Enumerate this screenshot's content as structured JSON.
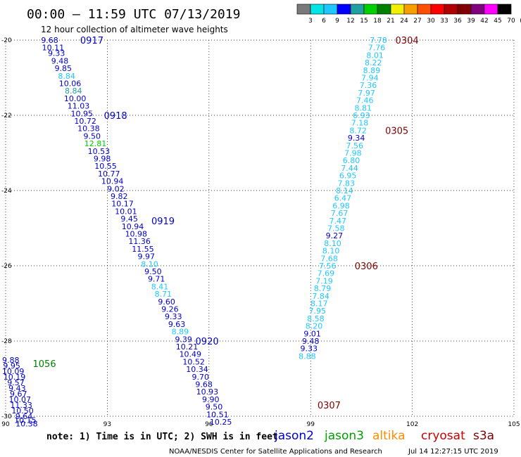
{
  "header": {
    "title": "00:00 – 11:59 UTC 07/13/2019",
    "subtitle": "12 hour collection of altimeter wave heights"
  },
  "scale": {
    "labels": [
      "3",
      "6",
      "9",
      "12",
      "15",
      "18",
      "21",
      "24",
      "27",
      "30",
      "33",
      "36",
      "39",
      "42",
      "45",
      "70",
      "(ft)"
    ],
    "colors": [
      "#7a7a7a",
      "#00e5e5",
      "#1ec8ff",
      "#0000ff",
      "#20a0a0",
      "#00d000",
      "#008000",
      "#f0f000",
      "#f5a000",
      "#ff5000",
      "#ff0000",
      "#b00000",
      "#800000",
      "#800080",
      "#ff00ff",
      "#000000"
    ]
  },
  "footer": {
    "note": "note: 1) Time is in UTC; 2) SWH is in feet",
    "credit": "NOAA/NESDIS Center for Satellite Applications and Research",
    "timestamp": "Jul 14 12:27:15 UTC 2019"
  },
  "legend": [
    {
      "name": "jason2",
      "color": "#0000cc"
    },
    {
      "name": "jason3",
      "color": "#00a000"
    },
    {
      "name": "altika",
      "color": "#ff8c00"
    },
    {
      "name": "cryosat",
      "color": "#cc0000"
    },
    {
      "name": "s3a",
      "color": "#800000"
    }
  ],
  "chart_data": {
    "type": "scatter",
    "title": "00:00 – 11:59 UTC 07/13/2019",
    "xlim": [
      90,
      105
    ],
    "ylim": [
      -30,
      -20
    ],
    "x_ticks": [
      "90",
      "93",
      "96",
      "99",
      "102",
      "105"
    ],
    "y_ticks": [
      "-20",
      "-22",
      "-24",
      "-26",
      "-28",
      "-30"
    ],
    "grid": "dotted",
    "time_labels": [
      {
        "text": "0917",
        "x": 92.2,
        "y": -20.0,
        "color": "#0000cc"
      },
      {
        "text": "0918",
        "x": 92.9,
        "y": -22.0,
        "color": "#0000cc"
      },
      {
        "text": "0919",
        "x": 94.3,
        "y": -24.8,
        "color": "#0000cc"
      },
      {
        "text": "0920",
        "x": 95.6,
        "y": -28.0,
        "color": "#0000cc"
      },
      {
        "text": "1056",
        "x": 90.8,
        "y": -28.6,
        "color": "#008000"
      },
      {
        "text": "0304",
        "x": 101.5,
        "y": -20.0,
        "color": "#800000"
      },
      {
        "text": "0305",
        "x": 101.2,
        "y": -22.4,
        "color": "#800000"
      },
      {
        "text": "0306",
        "x": 100.3,
        "y": -26.0,
        "color": "#800000"
      },
      {
        "text": "0307",
        "x": 99.2,
        "y": -29.7,
        "color": "#800000"
      }
    ],
    "series": [
      {
        "name": "jason2",
        "points": [
          {
            "x": 91.3,
            "y": -20.0,
            "v": "9.68",
            "c": "#0000cc"
          },
          {
            "x": 91.4,
            "y": -20.2,
            "v": "10.11",
            "c": "#0000cc"
          },
          {
            "x": 91.5,
            "y": -20.35,
            "v": "9.33",
            "c": "#0000cc"
          },
          {
            "x": 91.6,
            "y": -20.55,
            "v": "9.48",
            "c": "#0000cc"
          },
          {
            "x": 91.7,
            "y": -20.75,
            "v": "9.85",
            "c": "#0000cc"
          },
          {
            "x": 91.8,
            "y": -20.95,
            "v": "8.84",
            "c": "#1ec8ff"
          },
          {
            "x": 91.9,
            "y": -21.15,
            "v": "10.06",
            "c": "#0000cc"
          },
          {
            "x": 92.0,
            "y": -21.35,
            "v": "8.84",
            "c": "#20a0a0"
          },
          {
            "x": 92.05,
            "y": -21.55,
            "v": "10.00",
            "c": "#0000cc"
          },
          {
            "x": 92.15,
            "y": -21.75,
            "v": "11.03",
            "c": "#0000cc"
          },
          {
            "x": 92.25,
            "y": -21.95,
            "v": "10.95",
            "c": "#0000cc"
          },
          {
            "x": 92.35,
            "y": -22.15,
            "v": "10.72",
            "c": "#0000cc"
          },
          {
            "x": 92.45,
            "y": -22.35,
            "v": "10.38",
            "c": "#0000cc"
          },
          {
            "x": 92.55,
            "y": -22.55,
            "v": "9.50",
            "c": "#0000cc"
          },
          {
            "x": 92.65,
            "y": -22.75,
            "v": "12.81",
            "c": "#00d000"
          },
          {
            "x": 92.75,
            "y": -22.95,
            "v": "10.53",
            "c": "#0000cc"
          },
          {
            "x": 92.85,
            "y": -23.15,
            "v": "9.98",
            "c": "#0000cc"
          },
          {
            "x": 92.95,
            "y": -23.35,
            "v": "10.55",
            "c": "#0000cc"
          },
          {
            "x": 93.05,
            "y": -23.55,
            "v": "10.77",
            "c": "#0000cc"
          },
          {
            "x": 93.15,
            "y": -23.75,
            "v": "10.94",
            "c": "#0000cc"
          },
          {
            "x": 93.25,
            "y": -23.95,
            "v": "9.02",
            "c": "#0000cc"
          },
          {
            "x": 93.35,
            "y": -24.15,
            "v": "9.82",
            "c": "#0000cc"
          },
          {
            "x": 93.45,
            "y": -24.35,
            "v": "10.17",
            "c": "#0000cc"
          },
          {
            "x": 93.55,
            "y": -24.55,
            "v": "10.01",
            "c": "#0000cc"
          },
          {
            "x": 93.65,
            "y": -24.75,
            "v": "9.45",
            "c": "#0000cc"
          },
          {
            "x": 93.75,
            "y": -24.95,
            "v": "10.94",
            "c": "#0000cc"
          },
          {
            "x": 93.85,
            "y": -25.15,
            "v": "10.98",
            "c": "#0000cc"
          },
          {
            "x": 93.95,
            "y": -25.35,
            "v": "11.36",
            "c": "#0000cc"
          },
          {
            "x": 94.05,
            "y": -25.55,
            "v": "11.55",
            "c": "#0000cc"
          },
          {
            "x": 94.15,
            "y": -25.75,
            "v": "9.97",
            "c": "#0000cc"
          },
          {
            "x": 94.25,
            "y": -25.95,
            "v": "8.10",
            "c": "#1ec8ff"
          },
          {
            "x": 94.35,
            "y": -26.15,
            "v": "9.50",
            "c": "#0000cc"
          },
          {
            "x": 94.45,
            "y": -26.35,
            "v": "9.71",
            "c": "#0000cc"
          },
          {
            "x": 94.55,
            "y": -26.55,
            "v": "8.41",
            "c": "#1ec8ff"
          },
          {
            "x": 94.65,
            "y": -26.75,
            "v": "8.71",
            "c": "#1ec8ff"
          },
          {
            "x": 94.75,
            "y": -26.95,
            "v": "9.60",
            "c": "#0000cc"
          },
          {
            "x": 94.85,
            "y": -27.15,
            "v": "9.26",
            "c": "#0000cc"
          },
          {
            "x": 94.95,
            "y": -27.35,
            "v": "9.33",
            "c": "#0000cc"
          },
          {
            "x": 95.05,
            "y": -27.55,
            "v": "9.63",
            "c": "#0000cc"
          },
          {
            "x": 95.15,
            "y": -27.75,
            "v": "8.89",
            "c": "#1ec8ff"
          },
          {
            "x": 95.25,
            "y": -27.95,
            "v": "9.39",
            "c": "#0000cc"
          },
          {
            "x": 95.35,
            "y": -28.15,
            "v": "10.21",
            "c": "#0000cc"
          },
          {
            "x": 95.45,
            "y": -28.35,
            "v": "10.49",
            "c": "#0000cc"
          },
          {
            "x": 95.55,
            "y": -28.55,
            "v": "10.52",
            "c": "#0000cc"
          },
          {
            "x": 95.65,
            "y": -28.75,
            "v": "10.34",
            "c": "#0000cc"
          },
          {
            "x": 95.75,
            "y": -28.95,
            "v": "9.70",
            "c": "#0000cc"
          },
          {
            "x": 95.85,
            "y": -29.15,
            "v": "9.68",
            "c": "#0000cc"
          },
          {
            "x": 95.95,
            "y": -29.35,
            "v": "10.93",
            "c": "#0000cc"
          },
          {
            "x": 96.05,
            "y": -29.55,
            "v": "9.90",
            "c": "#0000cc"
          },
          {
            "x": 96.15,
            "y": -29.75,
            "v": "9.50",
            "c": "#0000cc"
          },
          {
            "x": 96.25,
            "y": -29.95,
            "v": "10.51",
            "c": "#0000cc"
          },
          {
            "x": 96.35,
            "y": -30.15,
            "v": "10.25",
            "c": "#0000cc"
          }
        ]
      },
      {
        "name": "jason3",
        "points": [
          {
            "x": 90.15,
            "y": -28.5,
            "v": "9.88",
            "c": "#0000cc"
          },
          {
            "x": 90.18,
            "y": -28.65,
            "v": "9.95",
            "c": "#0000cc"
          },
          {
            "x": 90.22,
            "y": -28.8,
            "v": "10.09",
            "c": "#0000cc"
          },
          {
            "x": 90.26,
            "y": -28.95,
            "v": "10.19",
            "c": "#0000cc"
          },
          {
            "x": 90.3,
            "y": -29.1,
            "v": "9.57",
            "c": "#0000cc"
          },
          {
            "x": 90.34,
            "y": -29.25,
            "v": "9.43",
            "c": "#0000cc"
          },
          {
            "x": 90.38,
            "y": -29.4,
            "v": "9.67",
            "c": "#0000cc"
          },
          {
            "x": 90.42,
            "y": -29.55,
            "v": "10.07",
            "c": "#0000cc"
          },
          {
            "x": 90.46,
            "y": -29.7,
            "v": "11.33",
            "c": "#0000cc"
          },
          {
            "x": 90.5,
            "y": -29.85,
            "v": "10.50",
            "c": "#0000cc"
          },
          {
            "x": 90.54,
            "y": -30.0,
            "v": "9.64",
            "c": "#0000cc"
          },
          {
            "x": 90.58,
            "y": -30.1,
            "v": "10.15",
            "c": "#0000cc"
          },
          {
            "x": 90.62,
            "y": -30.2,
            "v": "10.38",
            "c": "#0000cc"
          }
        ]
      },
      {
        "name": "s3a",
        "points": [
          {
            "x": 101.0,
            "y": -20.0,
            "v": "7.78",
            "c": "#1ec8ff"
          },
          {
            "x": 100.95,
            "y": -20.2,
            "v": "7.76",
            "c": "#1ec8ff"
          },
          {
            "x": 100.9,
            "y": -20.4,
            "v": "8.01",
            "c": "#1ec8ff"
          },
          {
            "x": 100.85,
            "y": -20.6,
            "v": "8.22",
            "c": "#1ec8ff"
          },
          {
            "x": 100.8,
            "y": -20.8,
            "v": "8.89",
            "c": "#1ec8ff"
          },
          {
            "x": 100.75,
            "y": -21.0,
            "v": "7.94",
            "c": "#1ec8ff"
          },
          {
            "x": 100.7,
            "y": -21.2,
            "v": "7.36",
            "c": "#1ec8ff"
          },
          {
            "x": 100.65,
            "y": -21.4,
            "v": "7.97",
            "c": "#1ec8ff"
          },
          {
            "x": 100.6,
            "y": -21.6,
            "v": "7.46",
            "c": "#1ec8ff"
          },
          {
            "x": 100.55,
            "y": -21.8,
            "v": "8.81",
            "c": "#1ec8ff"
          },
          {
            "x": 100.5,
            "y": -22.0,
            "v": "6.93",
            "c": "#1ec8ff"
          },
          {
            "x": 100.45,
            "y": -22.2,
            "v": "7.18",
            "c": "#1ec8ff"
          },
          {
            "x": 100.4,
            "y": -22.4,
            "v": "8.72",
            "c": "#1ec8ff"
          },
          {
            "x": 100.35,
            "y": -22.6,
            "v": "9.34",
            "c": "#0000cc"
          },
          {
            "x": 100.3,
            "y": -22.8,
            "v": "7.56",
            "c": "#1ec8ff"
          },
          {
            "x": 100.25,
            "y": -23.0,
            "v": "7.98",
            "c": "#1ec8ff"
          },
          {
            "x": 100.2,
            "y": -23.2,
            "v": "6.80",
            "c": "#1ec8ff"
          },
          {
            "x": 100.15,
            "y": -23.4,
            "v": "7.44",
            "c": "#1ec8ff"
          },
          {
            "x": 100.1,
            "y": -23.6,
            "v": "6.95",
            "c": "#1ec8ff"
          },
          {
            "x": 100.05,
            "y": -23.8,
            "v": "7.83",
            "c": "#1ec8ff"
          },
          {
            "x": 100.0,
            "y": -24.0,
            "v": "8.14",
            "c": "#1ec8ff"
          },
          {
            "x": 99.95,
            "y": -24.2,
            "v": "6.47",
            "c": "#1ec8ff"
          },
          {
            "x": 99.9,
            "y": -24.4,
            "v": "6.98",
            "c": "#1ec8ff"
          },
          {
            "x": 99.85,
            "y": -24.6,
            "v": "7.67",
            "c": "#1ec8ff"
          },
          {
            "x": 99.8,
            "y": -24.8,
            "v": "7.47",
            "c": "#1ec8ff"
          },
          {
            "x": 99.75,
            "y": -25.0,
            "v": "7.58",
            "c": "#1ec8ff"
          },
          {
            "x": 99.7,
            "y": -25.2,
            "v": "9.27",
            "c": "#0000cc"
          },
          {
            "x": 99.65,
            "y": -25.4,
            "v": "8.10",
            "c": "#1ec8ff"
          },
          {
            "x": 99.6,
            "y": -25.6,
            "v": "8.10",
            "c": "#1ec8ff"
          },
          {
            "x": 99.55,
            "y": -25.8,
            "v": "7.68",
            "c": "#1ec8ff"
          },
          {
            "x": 99.5,
            "y": -26.0,
            "v": "7.56",
            "c": "#1ec8ff"
          },
          {
            "x": 99.45,
            "y": -26.2,
            "v": "7.69",
            "c": "#1ec8ff"
          },
          {
            "x": 99.4,
            "y": -26.4,
            "v": "7.19",
            "c": "#1ec8ff"
          },
          {
            "x": 99.35,
            "y": -26.6,
            "v": "8.79",
            "c": "#1ec8ff"
          },
          {
            "x": 99.3,
            "y": -26.8,
            "v": "7.84",
            "c": "#1ec8ff"
          },
          {
            "x": 99.25,
            "y": -27.0,
            "v": "8.17",
            "c": "#1ec8ff"
          },
          {
            "x": 99.2,
            "y": -27.2,
            "v": "7.95",
            "c": "#1ec8ff"
          },
          {
            "x": 99.15,
            "y": -27.4,
            "v": "8.58",
            "c": "#1ec8ff"
          },
          {
            "x": 99.1,
            "y": -27.6,
            "v": "8.20",
            "c": "#1ec8ff"
          },
          {
            "x": 99.05,
            "y": -27.8,
            "v": "9.01",
            "c": "#0000cc"
          },
          {
            "x": 99.0,
            "y": -28.0,
            "v": "9.48",
            "c": "#0000cc"
          },
          {
            "x": 98.95,
            "y": -28.2,
            "v": "9.33",
            "c": "#0000cc"
          },
          {
            "x": 98.9,
            "y": -28.4,
            "v": "8.88",
            "c": "#1ec8ff"
          }
        ]
      }
    ]
  }
}
